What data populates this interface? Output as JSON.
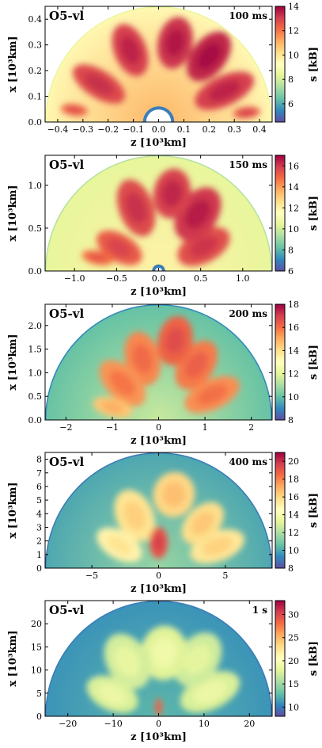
{
  "chart_data": [
    {
      "type": "heatmap",
      "model": "O5-vl",
      "time": "100 ms",
      "xlabel": "z [10³km]",
      "ylabel": "x [10³km]",
      "xlim": [
        -0.45,
        0.45
      ],
      "ylim": [
        0,
        0.45
      ],
      "xticks": [
        -0.4,
        -0.3,
        -0.2,
        -0.1,
        0.0,
        0.1,
        0.2,
        0.3,
        0.4
      ],
      "xticklabels": [
        "−0.4",
        "−0.3",
        "−0.2",
        "−0.1",
        "0.0",
        "0.1",
        "0.2",
        "0.3",
        "0.4"
      ],
      "yticks": [
        0.0,
        0.1,
        0.2,
        0.3,
        0.4
      ],
      "yticklabels": [
        "0.0",
        "0.1",
        "0.2",
        "0.3",
        "0.4"
      ],
      "colorbar": {
        "label": "s [kB]",
        "min": 4.5,
        "max": 14,
        "ticks": [
          6,
          8,
          10,
          12,
          14
        ],
        "ticklabels": [
          "6",
          "8",
          "10",
          "12",
          "14"
        ]
      },
      "background": 9.5,
      "plumes": [
        {
          "angle": 25,
          "dist": 0.64,
          "rx": 0.28,
          "ry": 0.13,
          "value": 13.0
        },
        {
          "angle": 52,
          "dist": 0.72,
          "rx": 0.25,
          "ry": 0.15,
          "value": 13.4
        },
        {
          "angle": 78,
          "dist": 0.7,
          "rx": 0.23,
          "ry": 0.15,
          "value": 13.2
        },
        {
          "angle": 112,
          "dist": 0.67,
          "rx": 0.24,
          "ry": 0.14,
          "value": 13.0
        },
        {
          "angle": 148,
          "dist": 0.62,
          "rx": 0.26,
          "ry": 0.12,
          "value": 12.8
        },
        {
          "angle": 6,
          "dist": 0.78,
          "rx": 0.12,
          "ry": 0.05,
          "value": 12.5
        },
        {
          "angle": 172,
          "dist": 0.75,
          "rx": 0.12,
          "ry": 0.05,
          "value": 12.3
        }
      ]
    },
    {
      "type": "heatmap",
      "model": "O5-vl",
      "time": "150 ms",
      "xlabel": "z [10³km]",
      "ylabel": "x [10³km]",
      "xlim": [
        -1.35,
        1.35
      ],
      "ylim": [
        0,
        1.35
      ],
      "xticks": [
        -1.0,
        -0.5,
        0.0,
        0.5,
        1.0
      ],
      "xticklabels": [
        "−1.0",
        "−0.5",
        "0.0",
        "0.5",
        "1.0"
      ],
      "yticks": [
        0.0,
        0.5,
        1.0
      ],
      "yticklabels": [
        "0.0",
        "0.5",
        "1.0"
      ],
      "colorbar": {
        "label": "s [kB]",
        "min": 6,
        "max": 17,
        "ticks": [
          6,
          8,
          10,
          12,
          14,
          16
        ],
        "ticklabels": [
          "6",
          "8",
          "10",
          "12",
          "14",
          "16"
        ]
      },
      "background": 10.5,
      "plumes": [
        {
          "angle": 28,
          "dist": 0.45,
          "rx": 0.25,
          "ry": 0.14,
          "value": 15.5
        },
        {
          "angle": 55,
          "dist": 0.6,
          "rx": 0.26,
          "ry": 0.17,
          "value": 16.0
        },
        {
          "angle": 80,
          "dist": 0.68,
          "rx": 0.22,
          "ry": 0.16,
          "value": 15.8
        },
        {
          "angle": 110,
          "dist": 0.58,
          "rx": 0.26,
          "ry": 0.15,
          "value": 15.6
        },
        {
          "angle": 150,
          "dist": 0.4,
          "rx": 0.22,
          "ry": 0.12,
          "value": 15.2
        },
        {
          "angle": 168,
          "dist": 0.55,
          "rx": 0.14,
          "ry": 0.06,
          "value": 14.8
        }
      ]
    },
    {
      "type": "heatmap",
      "model": "O5-vl",
      "time": "200 ms",
      "xlabel": "z [10³km]",
      "ylabel": "x [10³km]",
      "xlim": [
        -2.45,
        2.45
      ],
      "ylim": [
        0,
        2.45
      ],
      "xticks": [
        -2,
        -1,
        0,
        1,
        2
      ],
      "xticklabels": [
        "−2",
        "−1",
        "0",
        "1",
        "2"
      ],
      "yticks": [
        0.0,
        0.5,
        1.0,
        1.5,
        2.0
      ],
      "yticklabels": [
        "0.0",
        "0.5",
        "1.0",
        "1.5",
        "2.0"
      ],
      "colorbar": {
        "label": "s [kB]",
        "min": 8,
        "max": 18,
        "ticks": [
          8,
          10,
          12,
          14,
          16,
          18
        ],
        "ticklabels": [
          "8",
          "10",
          "12",
          "14",
          "16",
          "18"
        ]
      },
      "background": 10.0,
      "plumes": [
        {
          "angle": 25,
          "dist": 0.52,
          "rx": 0.26,
          "ry": 0.13,
          "value": 15.5
        },
        {
          "angle": 55,
          "dist": 0.58,
          "rx": 0.24,
          "ry": 0.15,
          "value": 15.8
        },
        {
          "angle": 78,
          "dist": 0.7,
          "rx": 0.22,
          "ry": 0.15,
          "value": 16.2
        },
        {
          "angle": 105,
          "dist": 0.55,
          "rx": 0.24,
          "ry": 0.15,
          "value": 15.6
        },
        {
          "angle": 135,
          "dist": 0.45,
          "rx": 0.25,
          "ry": 0.14,
          "value": 15.4
        },
        {
          "angle": 165,
          "dist": 0.42,
          "rx": 0.18,
          "ry": 0.08,
          "value": 14.5
        }
      ]
    },
    {
      "type": "heatmap",
      "model": "O5-vl",
      "time": "400 ms",
      "xlabel": "z [10³km]",
      "ylabel": "x [10³km]",
      "xlim": [
        -8.5,
        8.5
      ],
      "ylim": [
        0,
        8.5
      ],
      "xticks": [
        -5,
        0,
        5
      ],
      "xticklabels": [
        "−5",
        "0",
        "5"
      ],
      "yticks": [
        0,
        1,
        2,
        3,
        4,
        5,
        6,
        7,
        8
      ],
      "yticklabels": [
        "0",
        "1",
        "2",
        "3",
        "4",
        "5",
        "6",
        "7",
        "8"
      ],
      "colorbar": {
        "label": "s [kB]",
        "min": 8,
        "max": 21,
        "ticks": [
          8,
          10,
          12,
          14,
          16,
          18,
          20
        ],
        "ticklabels": [
          "8",
          "10",
          "12",
          "14",
          "16",
          "18",
          "20"
        ]
      },
      "background": 10.0,
      "plumes": [
        {
          "angle": 20,
          "dist": 0.55,
          "rx": 0.25,
          "ry": 0.13,
          "value": 15.5
        },
        {
          "angle": 45,
          "dist": 0.55,
          "rx": 0.22,
          "ry": 0.14,
          "value": 15.8
        },
        {
          "angle": 78,
          "dist": 0.65,
          "rx": 0.2,
          "ry": 0.18,
          "value": 16.0
        },
        {
          "angle": 115,
          "dist": 0.5,
          "rx": 0.24,
          "ry": 0.16,
          "value": 15.6
        },
        {
          "angle": 150,
          "dist": 0.4,
          "rx": 0.22,
          "ry": 0.12,
          "value": 15.0
        },
        {
          "angle": 90,
          "dist": 0.22,
          "rx": 0.14,
          "ry": 0.08,
          "value": 19.0
        }
      ]
    },
    {
      "type": "heatmap",
      "model": "O5-vl",
      "time": "1 s",
      "xlabel": "z [10³km]",
      "ylabel": "x [10³km]",
      "xlim": [
        -25,
        25
      ],
      "ylim": [
        0,
        25
      ],
      "xticks": [
        -20,
        -10,
        0,
        10,
        20
      ],
      "xticklabels": [
        "−20",
        "−10",
        "0",
        "10",
        "20"
      ],
      "yticks": [
        0,
        5,
        10,
        15,
        20
      ],
      "yticklabels": [
        "0",
        "5",
        "10",
        "15",
        "20"
      ],
      "colorbar": {
        "label": "s [kB]",
        "min": 8,
        "max": 33,
        "ticks": [
          10,
          15,
          20,
          25,
          30
        ],
        "ticklabels": [
          "10",
          "15",
          "20",
          "25",
          "30"
        ]
      },
      "background": 11.0,
      "plumes": [
        {
          "angle": 25,
          "dist": 0.5,
          "rx": 0.28,
          "ry": 0.15,
          "value": 17.5
        },
        {
          "angle": 55,
          "dist": 0.6,
          "rx": 0.26,
          "ry": 0.18,
          "value": 17.0
        },
        {
          "angle": 85,
          "dist": 0.55,
          "rx": 0.24,
          "ry": 0.2,
          "value": 17.8
        },
        {
          "angle": 120,
          "dist": 0.55,
          "rx": 0.26,
          "ry": 0.18,
          "value": 17.2
        },
        {
          "angle": 155,
          "dist": 0.45,
          "rx": 0.24,
          "ry": 0.14,
          "value": 17.5
        },
        {
          "angle": 90,
          "dist": 0.08,
          "rx": 0.08,
          "ry": 0.03,
          "value": 28.0
        }
      ]
    }
  ]
}
